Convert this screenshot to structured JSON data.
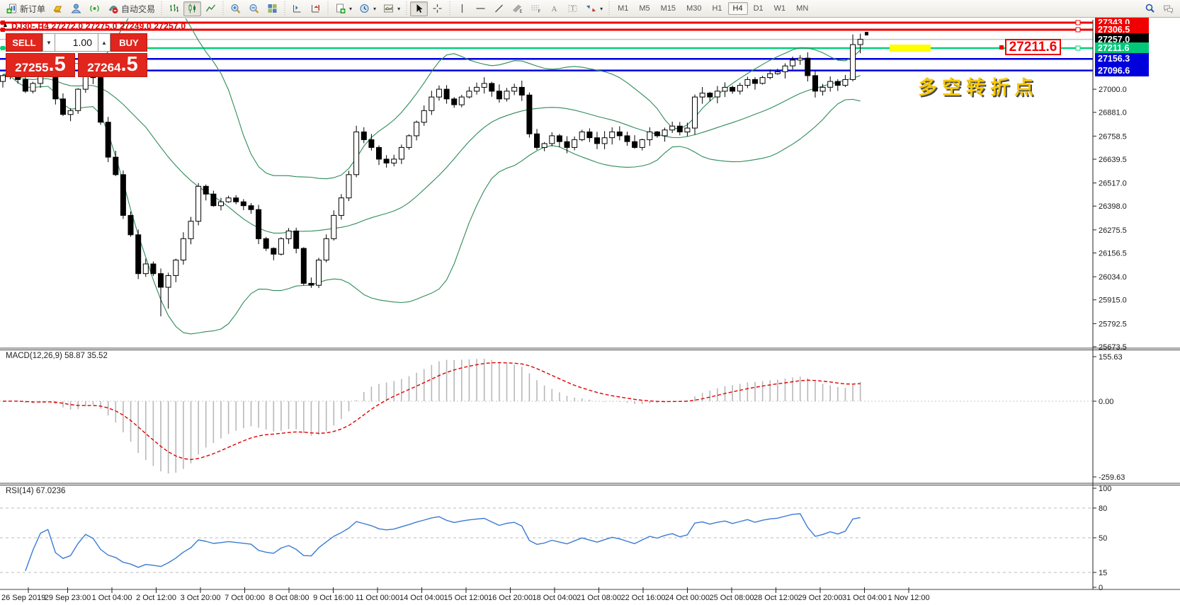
{
  "toolbar": {
    "new_order_label": "新订单",
    "autotrade_label": "自动交易",
    "icons": [
      "new-order-icon",
      "market-icon",
      "profile-icon",
      "signals-icon",
      "autotrade-icon",
      "bar-chart-icon",
      "candle-chart-icon",
      "line-chart-icon",
      "zoom-in-icon",
      "zoom-out-icon",
      "tile-windows-icon",
      "arrange-icon",
      "shift-end-icon",
      "new-chart-icon",
      "period-icon",
      "template-icon",
      "cursor-icon",
      "crosshair-icon",
      "vline-icon",
      "hline-icon",
      "trendline-icon",
      "channel-icon",
      "fibo-icon",
      "text-icon",
      "label-icon",
      "arrows-icon",
      "search-icon",
      "chat-icon"
    ],
    "timeframes": [
      "M1",
      "M5",
      "M15",
      "M30",
      "H1",
      "H4",
      "D1",
      "W1",
      "MN"
    ],
    "active_timeframe": "H4"
  },
  "chart": {
    "symbol_header": "DJ30-,H4  27272.0 27275.0 27249.0 27257.0",
    "anchor_marker": "▲"
  },
  "order_panel": {
    "sell_label": "SELL",
    "buy_label": "BUY",
    "volume": "1.00",
    "spin_down": "▼",
    "spin_up": "▲",
    "sell_price_main": "27255",
    "sell_price_frac": ".5",
    "buy_price_main": "27264",
    "buy_price_frac": ".5"
  },
  "annotations": {
    "price_callout": "27211.6",
    "cn_note": "多空转折点",
    "highlight_color": "#ffff00"
  },
  "price_axis": {
    "lines": [
      {
        "price": 27343.0,
        "label": "27343.0",
        "color": "#f00000",
        "width": 3,
        "badge": "#f00000",
        "handles": true
      },
      {
        "price": 27306.5,
        "label": "27306.5",
        "color": "#f00000",
        "width": 3,
        "badge": "#f00000",
        "handles": true
      },
      {
        "price": 27257.0,
        "label": "27257.0",
        "color": "#c0c0c0",
        "width": 1.5,
        "badge": "#000000",
        "handles": false
      },
      {
        "price": 27211.6,
        "label": "27211.6",
        "color": "#00d07a",
        "width": 2.5,
        "badge": "#00c878",
        "handles": true
      },
      {
        "price": 27156.3,
        "label": "27156.3",
        "color": "#0000e0",
        "width": 2.5,
        "badge": "#0000dd",
        "handles": false
      },
      {
        "price": 27096.6,
        "label": "27096.6",
        "color": "#0000e0",
        "width": 2.5,
        "badge": "#0000dd",
        "handles": false
      }
    ],
    "ticks": [
      "27000.0",
      "26881.0",
      "26758.5",
      "26639.5",
      "26517.0",
      "26398.0",
      "26275.5",
      "26156.5",
      "26034.0",
      "25915.0",
      "25792.5",
      "25673.5"
    ],
    "tick_prices": [
      27000.0,
      26881.0,
      26758.5,
      26639.5,
      26517.0,
      26398.0,
      26275.5,
      26156.5,
      26034.0,
      25915.0,
      25792.5,
      25673.5
    ]
  },
  "chart_data": {
    "type": "candlestick",
    "symbol": "DJ30-",
    "period": "H4",
    "price_range_top": 27343.0,
    "price_range_bottom": 25673.5,
    "closes": [
      27070,
      27090,
      27050,
      26990,
      27030,
      27090,
      27110,
      26950,
      26870,
      26890,
      27000,
      27120,
      27060,
      26830,
      26650,
      26560,
      26350,
      26250,
      26050,
      26100,
      26050,
      25980,
      26040,
      26120,
      26230,
      26320,
      26500,
      26460,
      26400,
      26420,
      26440,
      26420,
      26400,
      26380,
      26230,
      26180,
      26150,
      26230,
      26270,
      26180,
      26000,
      25990,
      26120,
      26230,
      26350,
      26440,
      26560,
      26780,
      26740,
      26700,
      26640,
      26620,
      26640,
      26700,
      26760,
      26830,
      26890,
      26960,
      27000,
      26950,
      26920,
      26960,
      26990,
      27010,
      27030,
      26990,
      26950,
      26990,
      27010,
      26970,
      26770,
      26700,
      26720,
      26760,
      26730,
      26700,
      26740,
      26780,
      26750,
      26720,
      26750,
      26780,
      26760,
      26730,
      26700,
      26740,
      26780,
      26760,
      26790,
      26810,
      26780,
      26800,
      26960,
      26980,
      26960,
      26990,
      27010,
      26990,
      27020,
      27050,
      27030,
      27060,
      27080,
      27090,
      27120,
      27150,
      27160,
      27070,
      26990,
      27010,
      27040,
      27020,
      27050,
      27230,
      27257
    ],
    "open_first": 27040,
    "wick_overrides": {
      "21": {
        "low": 25830
      },
      "22": {
        "low": 25870
      },
      "47": {
        "high": 26812
      },
      "64": {
        "high": 27062
      },
      "113": {
        "high": 27282
      },
      "114": {
        "high": 27286,
        "low": 27185
      }
    },
    "bollinger": {
      "period": 20,
      "deviation": 2,
      "color": "#2e8b57"
    },
    "macd": {
      "label": "MACD(12,26,9) 58.87 35.52",
      "fast": 12,
      "slow": 26,
      "signal": 9,
      "axis_labels": [
        "155.63",
        "0.00",
        "-259.63"
      ],
      "axis_values": [
        155.63,
        0.0,
        -259.63
      ],
      "hist_color": "#b8b8b8",
      "signal_color": "#e00000"
    },
    "rsi": {
      "label": "RSI(14) 67.0236",
      "period": 14,
      "last_value": 67.0236,
      "axis_labels": [
        "100",
        "80",
        "50",
        "15",
        "0"
      ],
      "axis_values": [
        100,
        80,
        50,
        15,
        0
      ],
      "levels": [
        80,
        50,
        15
      ],
      "color": "#3a7bd5"
    },
    "time_labels": [
      "26 Sep 2019",
      "29 Sep 23:00",
      "1 Oct 04:00",
      "2 Oct 12:00",
      "3 Oct 20:00",
      "7 Oct 00:00",
      "8 Oct 08:00",
      "9 Oct 16:00",
      "11 Oct 00:00",
      "14 Oct 04:00",
      "15 Oct 12:00",
      "16 Oct 20:00",
      "18 Oct 04:00",
      "21 Oct 08:00",
      "22 Oct 16:00",
      "24 Oct 00:00",
      "25 Oct 08:00",
      "28 Oct 12:00",
      "29 Oct 20:00",
      "31 Oct 04:00",
      "1 Nov 12:00"
    ]
  },
  "colors": {
    "bull": "#ffffff",
    "bear": "#000000",
    "outline": "#000000",
    "band": "#2e8b57",
    "axis_text": "#1a1a1a",
    "panel_label": "#222222"
  }
}
